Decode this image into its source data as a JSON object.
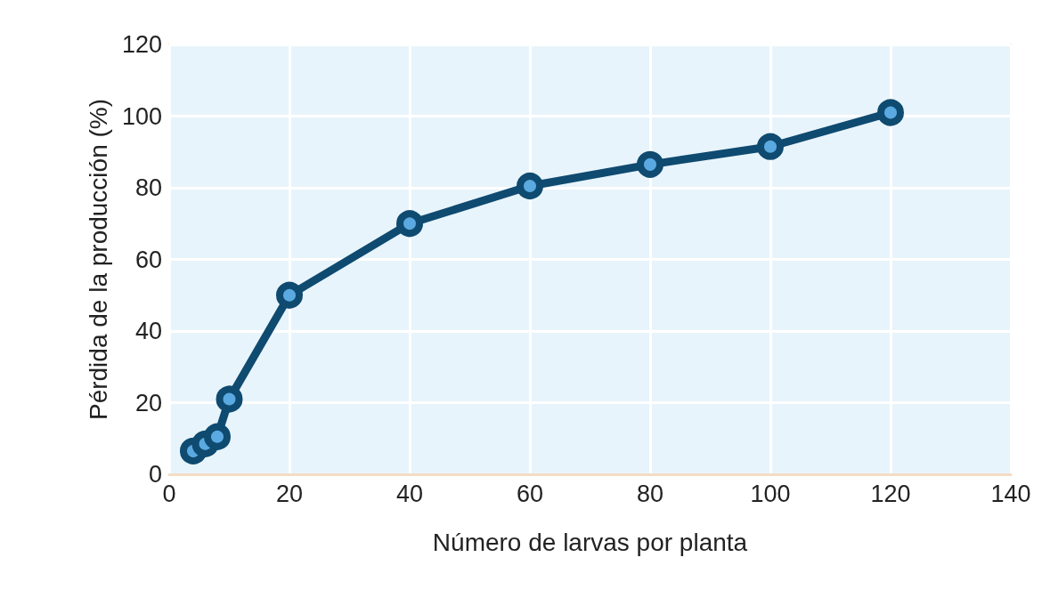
{
  "chart_data": {
    "type": "line",
    "xlabel": "Número de larvas por planta",
    "ylabel": "Pérdida de la producción (%)",
    "x": [
      4,
      6,
      8,
      10,
      20,
      40,
      60,
      80,
      100,
      120
    ],
    "series": [
      {
        "color": "#0f4a70",
        "values": [
          6.5,
          8.5,
          10.5,
          21,
          50,
          70,
          80.5,
          86.5,
          91.5,
          101
        ]
      }
    ],
    "xlim": [
      0,
      140
    ],
    "xticks": [
      0,
      20,
      40,
      60,
      80,
      100,
      120,
      140
    ],
    "ylim": [
      0,
      120
    ],
    "yticks": [
      0,
      20,
      40,
      60,
      80,
      100,
      120
    ],
    "grid": true,
    "marker": "circle",
    "line_style": "solid"
  }
}
